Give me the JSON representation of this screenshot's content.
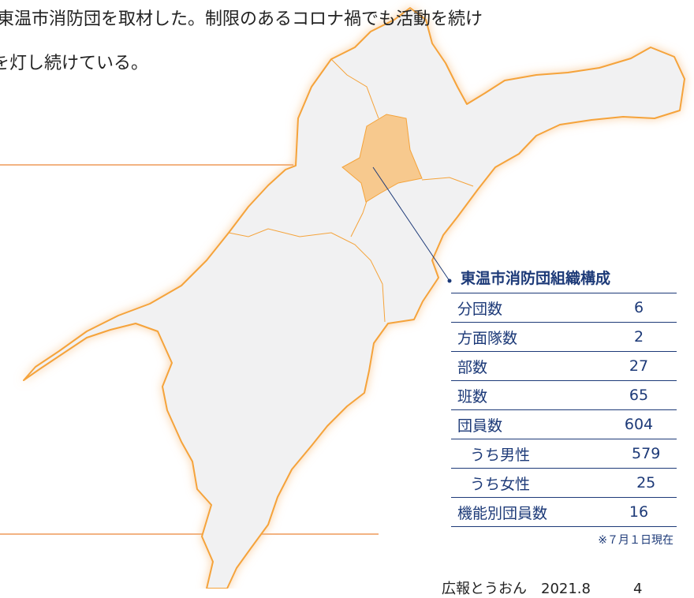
{
  "lead": {
    "lines": [
      "東温市消防団を取材した。制限のあるコロナ禍でも活動を続け",
      "を灯し続けている。"
    ]
  },
  "table": {
    "title": "東温市消防団組織構成",
    "rows": [
      [
        "分団数",
        6
      ],
      [
        "方面隊数",
        2
      ],
      [
        "部数",
        27
      ],
      [
        "班数",
        65
      ],
      [
        "団員数",
        604
      ],
      [
        "うち男性",
        579
      ],
      [
        "うち女性",
        25
      ],
      [
        "機能別団員数",
        16
      ]
    ],
    "note": "※７月１日現在"
  },
  "footer": "広報とうおん　2021.8　　　4"
}
